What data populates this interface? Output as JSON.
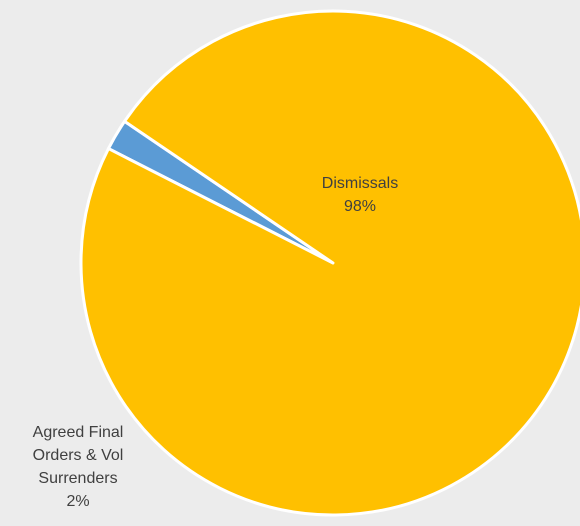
{
  "chart_data": {
    "type": "pie",
    "title": "",
    "start_angle_deg": 207,
    "slices": [
      {
        "label_lines": [
          "Agreed Final",
          "Orders & Vol",
          "Surrenders"
        ],
        "value": 2,
        "percent_label": "2%",
        "color": "#5b9bd5"
      },
      {
        "label_lines": [
          "Dismissals"
        ],
        "value": 98,
        "percent_label": "98%",
        "color": "#ffc000"
      }
    ],
    "separator_color": "#ffffff",
    "legend": "none"
  }
}
